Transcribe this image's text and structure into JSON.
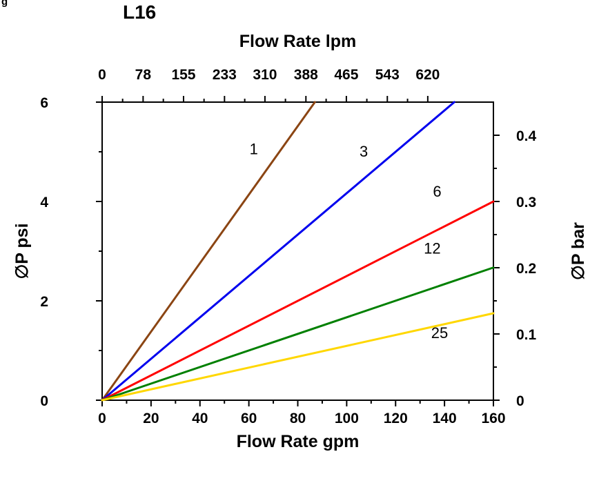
{
  "figure": {
    "corner_fragment": "g"
  },
  "chart_data": {
    "type": "line",
    "title": "L16",
    "legend": "none",
    "grid": "off",
    "axes": {
      "top": {
        "label": "Flow Rate lpm",
        "min": 0,
        "max": 745,
        "tick_values": [
          0,
          78,
          155,
          233,
          310,
          388,
          465,
          543,
          620
        ],
        "tick_labels": [
          "0",
          "78",
          "155",
          "233",
          "310",
          "388",
          "465",
          "543",
          "620"
        ]
      },
      "bottom": {
        "label": "Flow Rate gpm",
        "min": 0,
        "max": 160,
        "tick_values": [
          0,
          20,
          40,
          60,
          80,
          100,
          120,
          140,
          160
        ],
        "tick_labels": [
          "0",
          "20",
          "40",
          "60",
          "80",
          "100",
          "120",
          "140",
          "160"
        ],
        "minor_values": [
          10,
          30,
          50,
          70,
          90,
          110,
          130,
          150
        ]
      },
      "left": {
        "label": "∅P psi",
        "min": 0,
        "max": 6,
        "tick_values": [
          0,
          2,
          4,
          6
        ],
        "tick_labels": [
          "0",
          "2",
          "4",
          "6"
        ],
        "minor_values": [
          1,
          3,
          5
        ]
      },
      "right": {
        "label": "∅P bar",
        "min": 0,
        "max": 0.45,
        "tick_values": [
          0,
          0.1,
          0.2,
          0.3,
          0.4
        ],
        "tick_labels": [
          "0",
          "0.1",
          "0.2",
          "0.3",
          "0.4"
        ],
        "minor_values": [
          0.05,
          0.15,
          0.25,
          0.35
        ]
      }
    },
    "series": [
      {
        "name": "1",
        "color": "#8B4513",
        "points": [
          [
            0,
            0
          ],
          [
            87,
            6
          ]
        ],
        "label": {
          "x": 62,
          "y": 4.95
        }
      },
      {
        "name": "3",
        "color": "#0000EE",
        "points": [
          [
            0,
            0
          ],
          [
            144,
            6
          ]
        ],
        "label": {
          "x": 107,
          "y": 4.9
        }
      },
      {
        "name": "6",
        "color": "#FF0000",
        "points": [
          [
            0,
            0
          ],
          [
            160,
            4
          ]
        ],
        "label": {
          "x": 137,
          "y": 4.1
        }
      },
      {
        "name": "12",
        "color": "#008000",
        "points": [
          [
            0,
            0
          ],
          [
            160,
            2.67
          ]
        ],
        "label": {
          "x": 135,
          "y": 2.95
        }
      },
      {
        "name": "25",
        "color": "#FFD700",
        "points": [
          [
            0,
            0
          ],
          [
            160,
            1.75
          ]
        ],
        "label": {
          "x": 138,
          "y": 1.25
        }
      }
    ]
  }
}
